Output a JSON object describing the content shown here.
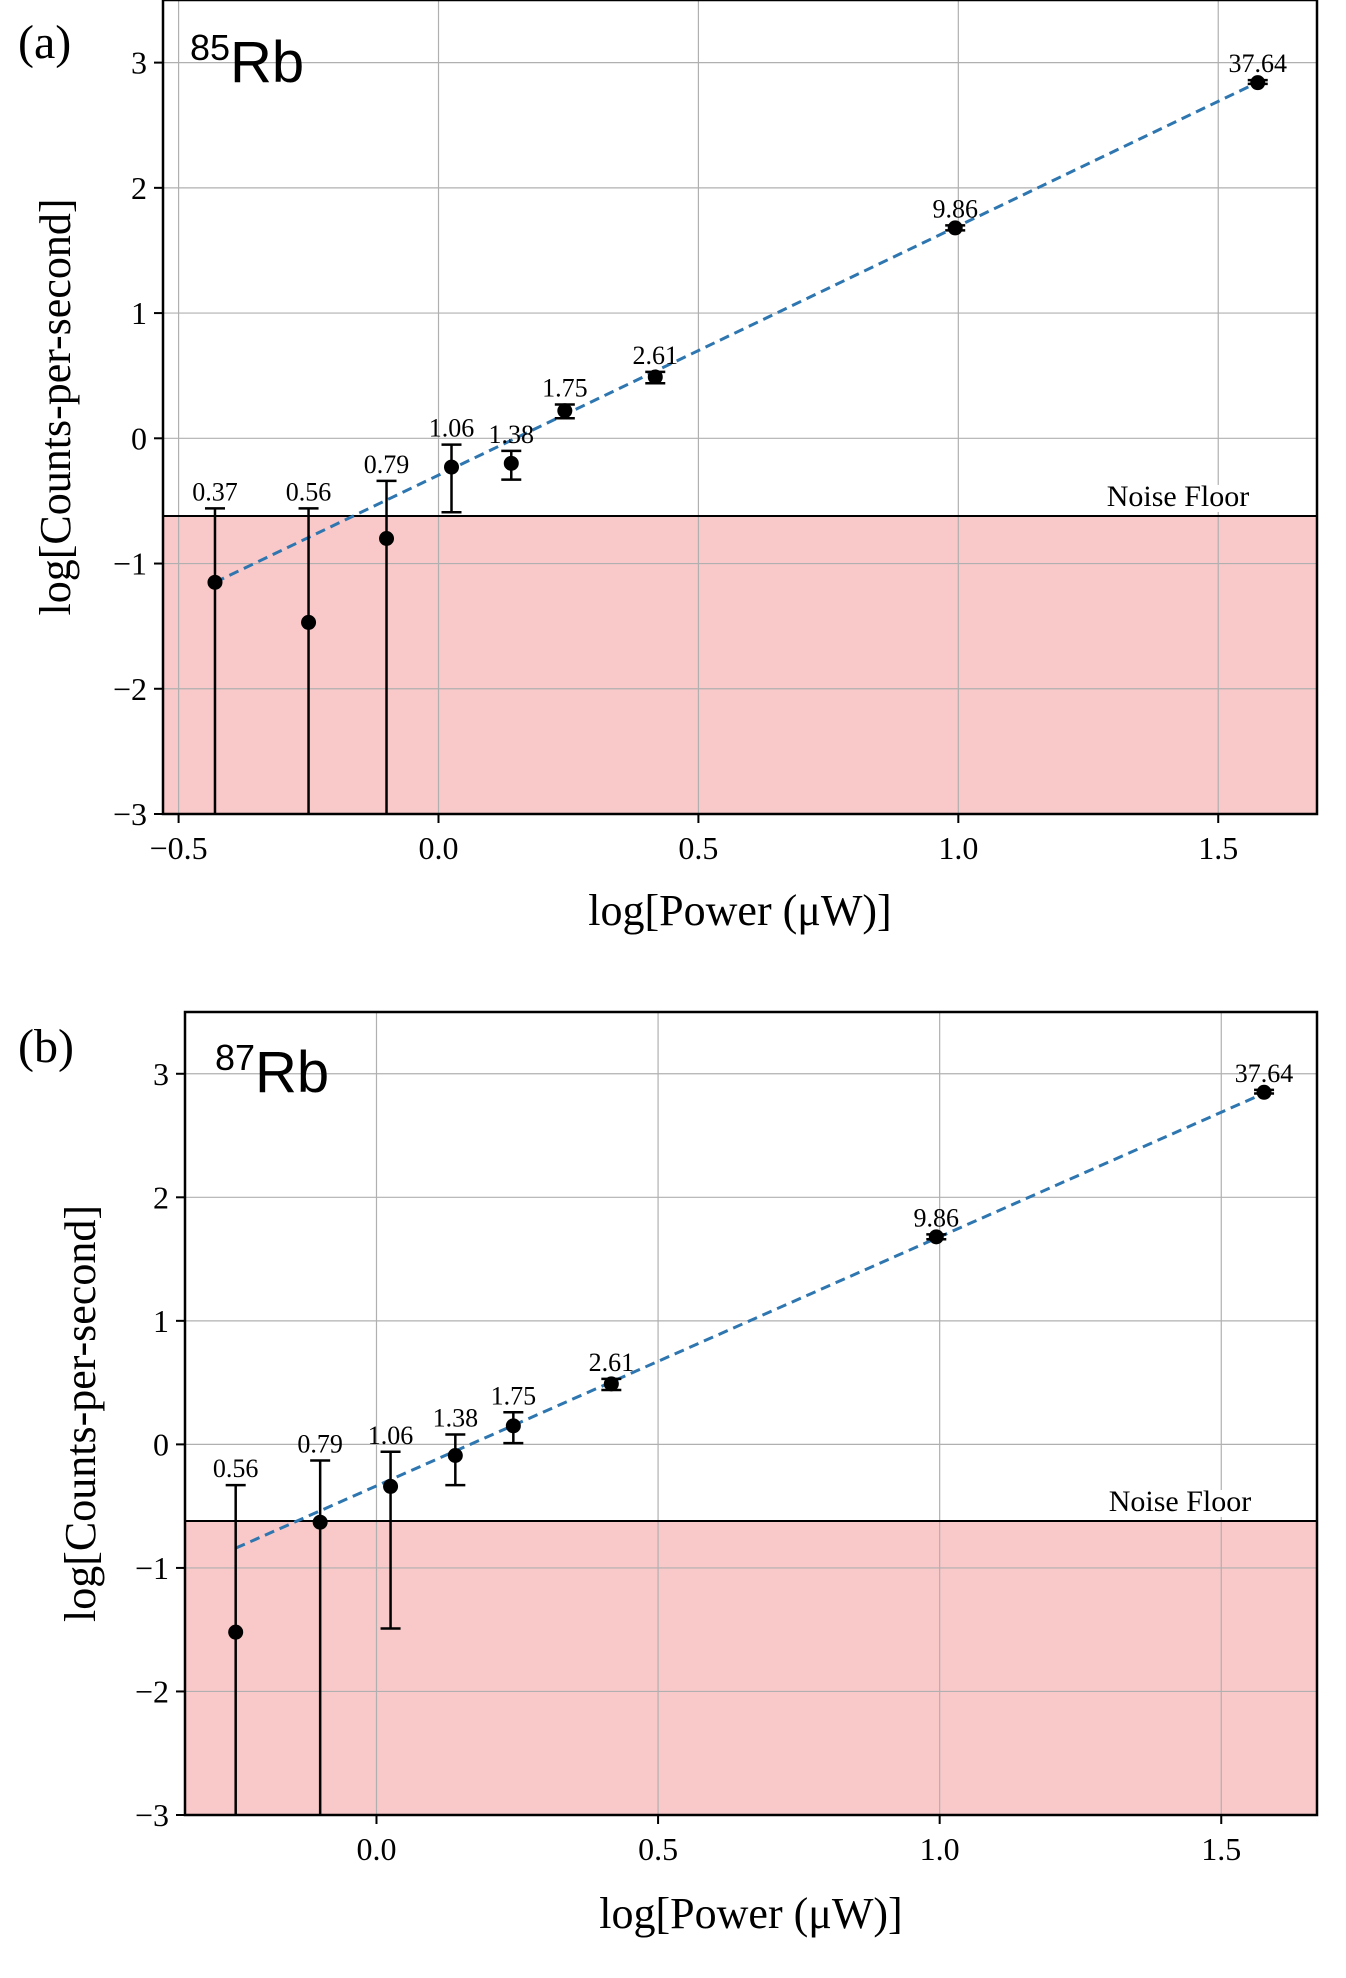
{
  "chart_data": [
    {
      "type": "scatter",
      "panel_label": "(a)",
      "isotope_mass": "85",
      "isotope_symbol": "Rb",
      "xlabel": "log[Power (μW)]",
      "ylabel": "log[Counts-per-second]",
      "xlim": [
        -0.53,
        1.69
      ],
      "ylim": [
        -3,
        3.5
      ],
      "xticks": [
        -0.5,
        0.0,
        0.5,
        1.0,
        1.5
      ],
      "xtick_labels": [
        "−0.5",
        "0.0",
        "0.5",
        "1.0",
        "1.5"
      ],
      "yticks": [
        -3,
        -2,
        -1,
        0,
        1,
        2,
        3
      ],
      "ytick_labels": [
        "−3",
        "−2",
        "−1",
        "0",
        "1",
        "2",
        "3"
      ],
      "grid": true,
      "noise_floor": {
        "y": -0.62,
        "label": "Noise Floor",
        "color": "#f9c8c8"
      },
      "fit_line": {
        "x": [
          -0.43,
          1.58
        ],
        "y": [
          -1.15,
          2.85
        ],
        "color": "#2e76b0"
      },
      "points": [
        {
          "x": -0.43,
          "y": -1.15,
          "yerr_low": -3.0,
          "yerr_high": -0.56,
          "label": "0.37"
        },
        {
          "x": -0.25,
          "y": -1.47,
          "yerr_low": -3.0,
          "yerr_high": -0.56,
          "label": "0.56"
        },
        {
          "x": -0.1,
          "y": -0.8,
          "yerr_low": -3.0,
          "yerr_high": -0.34,
          "label": "0.79"
        },
        {
          "x": 0.025,
          "y": -0.23,
          "yerr_low": -0.59,
          "yerr_high": -0.05,
          "label": "1.06"
        },
        {
          "x": 0.14,
          "y": -0.2,
          "yerr_low": -0.33,
          "yerr_high": -0.1,
          "label": "1.38"
        },
        {
          "x": 0.243,
          "y": 0.22,
          "yerr_low": 0.16,
          "yerr_high": 0.27,
          "label": "1.75"
        },
        {
          "x": 0.417,
          "y": 0.49,
          "yerr_low": 0.44,
          "yerr_high": 0.53,
          "label": "2.61"
        },
        {
          "x": 0.994,
          "y": 1.68,
          "yerr_low": 1.66,
          "yerr_high": 1.7,
          "label": "9.86"
        },
        {
          "x": 1.576,
          "y": 2.84,
          "yerr_low": 2.83,
          "yerr_high": 2.86,
          "label": "37.64"
        }
      ]
    },
    {
      "type": "scatter",
      "panel_label": "(b)",
      "isotope_mass": "87",
      "isotope_symbol": "Rb",
      "xlabel": "log[Power (μW)]",
      "ylabel": "log[Counts-per-second]",
      "xlim": [
        -0.34,
        1.67
      ],
      "ylim": [
        -3,
        3.5
      ],
      "xticks": [
        0.0,
        0.5,
        1.0,
        1.5
      ],
      "xtick_labels": [
        "0.0",
        "0.5",
        "1.0",
        "1.5"
      ],
      "yticks": [
        -3,
        -2,
        -1,
        0,
        1,
        2,
        3
      ],
      "ytick_labels": [
        "−3",
        "−2",
        "−1",
        "0",
        "1",
        "2",
        "3"
      ],
      "grid": true,
      "noise_floor": {
        "y": -0.62,
        "label": "Noise Floor",
        "color": "#f9c8c8"
      },
      "fit_line": {
        "x": [
          -0.25,
          1.58
        ],
        "y": [
          -0.84,
          2.85
        ],
        "color": "#2e76b0"
      },
      "points": [
        {
          "x": -0.25,
          "y": -1.52,
          "yerr_low": -3.0,
          "yerr_high": -0.33,
          "label": "0.56"
        },
        {
          "x": -0.1,
          "y": -0.63,
          "yerr_low": -3.0,
          "yerr_high": -0.13,
          "label": "0.79"
        },
        {
          "x": 0.025,
          "y": -0.34,
          "yerr_low": -1.49,
          "yerr_high": -0.06,
          "label": "1.06"
        },
        {
          "x": 0.14,
          "y": -0.09,
          "yerr_low": -0.33,
          "yerr_high": 0.08,
          "label": "1.38"
        },
        {
          "x": 0.243,
          "y": 0.15,
          "yerr_low": 0.01,
          "yerr_high": 0.26,
          "label": "1.75"
        },
        {
          "x": 0.417,
          "y": 0.49,
          "yerr_low": 0.44,
          "yerr_high": 0.53,
          "label": "2.61"
        },
        {
          "x": 0.994,
          "y": 1.68,
          "yerr_low": 1.66,
          "yerr_high": 1.7,
          "label": "9.86"
        },
        {
          "x": 1.576,
          "y": 2.85,
          "yerr_low": 2.84,
          "yerr_high": 2.87,
          "label": "37.64"
        }
      ]
    }
  ]
}
